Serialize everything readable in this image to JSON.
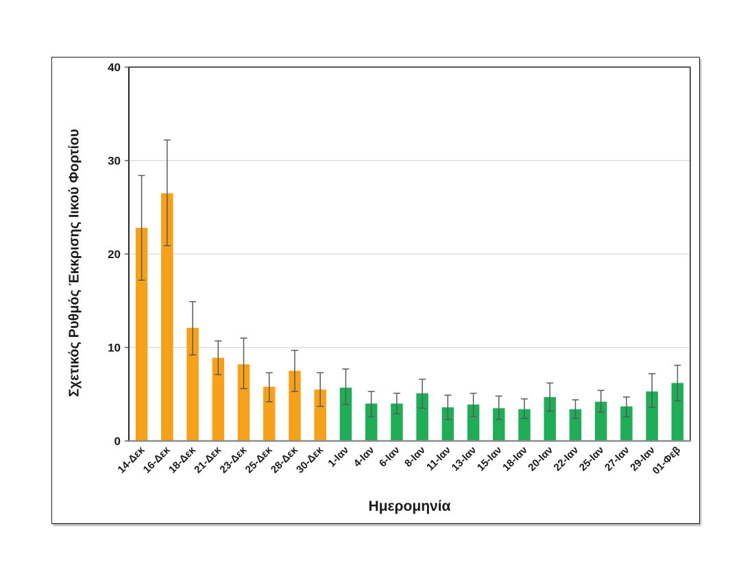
{
  "figure": {
    "kind": "statistical-bar-chart-with-error-bars"
  },
  "colors": {
    "december_bars": "#F7A11A",
    "january_bars": "#1FAD57",
    "error_bars": "#595959",
    "gridline": "#D9D9D9",
    "plot_border": "#3f3f3f",
    "bottom_axis": "#8c8c8c",
    "text": "#1a1a1a",
    "figure_border": "#1f1f1f",
    "background": "#ffffff"
  },
  "chart_data": {
    "type": "bar",
    "title": "",
    "xlabel": "Ημερομηνία",
    "ylabel": "Σχετικός Ρυθμός Έκκρισης Ιικού Φορτίου",
    "ylim": [
      0,
      40
    ],
    "yticks": [
      0,
      10,
      20,
      30,
      40
    ],
    "grid": "horizontal",
    "legend": "none",
    "x_tick_rotation_deg": 45,
    "categories": [
      "14-Δεκ",
      "16-Δεκ",
      "18-Δεκ",
      "21-Δεκ",
      "23-Δεκ",
      "25-Δεκ",
      "28-Δεκ",
      "30-Δεκ",
      "1-Ιαν",
      "4-Ιαν",
      "6-Ιαν",
      "8-Ιαν",
      "11-Ιαν",
      "13-Ιαν",
      "15-Ιαν",
      "18-Ιαν",
      "20-Ιαν",
      "22-Ιαν",
      "25-Ιαν",
      "27-Ιαν",
      "29-Ιαν",
      "01-Φεβ"
    ],
    "values": [
      22.8,
      26.5,
      12.1,
      8.9,
      8.2,
      5.8,
      7.5,
      5.5,
      5.7,
      4.0,
      4.0,
      5.1,
      3.6,
      3.9,
      3.5,
      3.4,
      4.7,
      3.4,
      4.2,
      3.7,
      5.3,
      6.2
    ],
    "error_high": [
      28.4,
      32.2,
      14.9,
      10.7,
      11.0,
      7.3,
      9.7,
      7.3,
      7.7,
      5.3,
      5.1,
      6.6,
      4.9,
      5.1,
      4.8,
      4.5,
      6.2,
      4.4,
      5.4,
      4.7,
      7.2,
      8.1
    ],
    "error_low": [
      17.2,
      20.9,
      9.2,
      7.1,
      5.6,
      4.2,
      5.3,
      3.7,
      3.9,
      2.6,
      2.9,
      3.5,
      2.3,
      2.6,
      2.3,
      2.4,
      3.2,
      2.4,
      3.1,
      2.6,
      3.6,
      4.3
    ],
    "bar_groups": [
      "dec",
      "dec",
      "dec",
      "dec",
      "dec",
      "dec",
      "dec",
      "dec",
      "jan",
      "jan",
      "jan",
      "jan",
      "jan",
      "jan",
      "jan",
      "jan",
      "jan",
      "jan",
      "jan",
      "jan",
      "jan",
      "jan"
    ],
    "group_colors": {
      "dec": "#F7A11A",
      "jan": "#1FAD57"
    }
  }
}
